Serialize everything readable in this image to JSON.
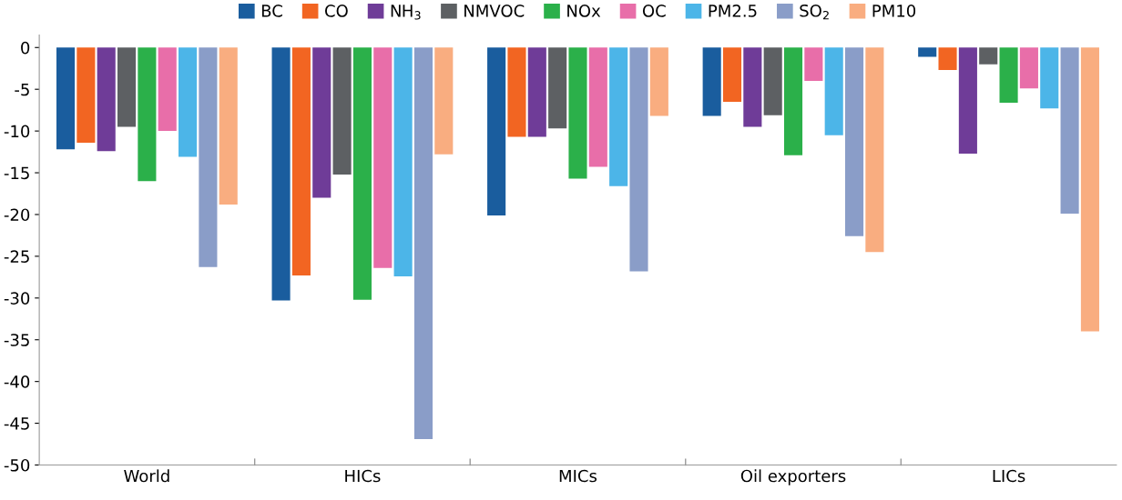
{
  "chart_data": {
    "type": "bar",
    "categories": [
      "World",
      "HICs",
      "MICs",
      "Oil exporters",
      "LICs"
    ],
    "series": [
      {
        "name": "BC",
        "color": "#1a5d9e",
        "values": [
          -12.2,
          -30.3,
          -20.1,
          -8.2,
          -1.1
        ]
      },
      {
        "name": "CO",
        "color": "#f26522",
        "values": [
          -11.4,
          -27.3,
          -10.7,
          -6.5,
          -2.7
        ]
      },
      {
        "name": "NH$_{3}$",
        "color": "#6f3c98",
        "values": [
          -12.4,
          -18,
          -10.7,
          -9.5,
          -12.7
        ]
      },
      {
        "name": "NMVOC",
        "color": "#5d6063",
        "values": [
          -9.5,
          -15.2,
          -9.7,
          -8.1,
          -2
        ]
      },
      {
        "name": "NOx",
        "color": "#2bb04a",
        "values": [
          -16,
          -30.2,
          -15.7,
          -12.9,
          -6.6
        ]
      },
      {
        "name": "OC",
        "color": "#e86ea9",
        "values": [
          -10,
          -26.4,
          -14.3,
          -4,
          -4.9
        ]
      },
      {
        "name": "PM2.5",
        "color": "#4cb5e8",
        "values": [
          -13.1,
          -27.4,
          -16.6,
          -10.5,
          -7.3
        ]
      },
      {
        "name": "SO$_{2}$",
        "color": "#8a9dc8",
        "values": [
          -26.3,
          -46.9,
          -26.8,
          -22.6,
          -19.9
        ]
      },
      {
        "name": "PM10",
        "color": "#f9ad80",
        "values": [
          -18.8,
          -12.8,
          -8.2,
          -24.5,
          -34
        ]
      }
    ],
    "ylim": [
      -50,
      1.5
    ],
    "yticks": [
      0,
      -5,
      -10,
      -15,
      -20,
      -25,
      -30,
      -35,
      -40,
      -45,
      -50
    ],
    "grid": false,
    "legend": "top"
  }
}
